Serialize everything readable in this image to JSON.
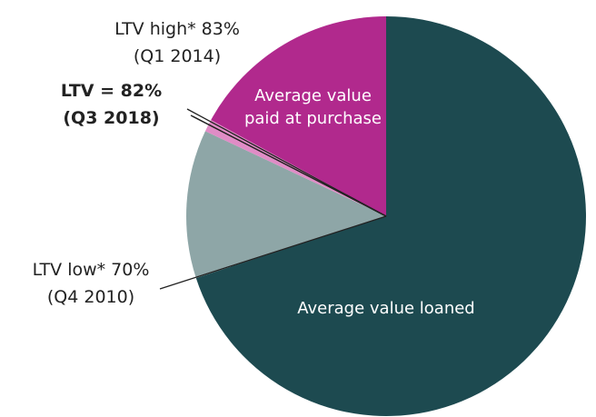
{
  "chart_data": {
    "type": "pie",
    "labels": [
      "Average value loaned",
      null,
      null,
      "Average value paid at purchase"
    ],
    "values": [
      70,
      12,
      1,
      17
    ],
    "colors": [
      "#1d4a50",
      "#8ea6a7",
      "#e08cc6",
      "#b1298d"
    ],
    "annotations": [
      {
        "text": "LTV low* 70%",
        "sub": "(Q4 2010)",
        "bold": false
      },
      {
        "text": "LTV = 82%",
        "sub": "(Q3 2018)",
        "bold": true
      },
      {
        "text": "LTV high* 83%",
        "sub": "(Q1 2014)",
        "bold": false
      }
    ]
  }
}
